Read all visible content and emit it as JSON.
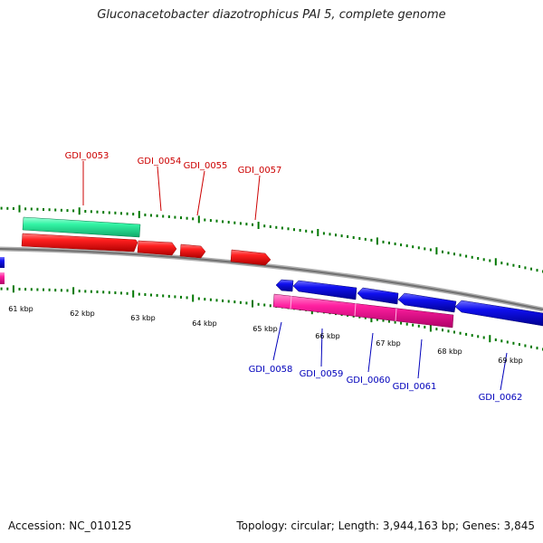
{
  "title": "Gluconacetobacter diazotrophicus PAI 5, complete genome",
  "footer": {
    "accession": "Accession: NC_010125",
    "stats": "Topology: circular; Length: 3,944,163 bp; Genes: 3,845"
  },
  "colors": {
    "forward_gene": "#ff0000",
    "forward_rna": "#33ffaa",
    "reverse_gene": "#0000ee",
    "reverse_rna": "#ff1aa3",
    "label_forward": "#cc0000",
    "label_reverse": "#0000bb",
    "ticks": "#007700",
    "backbone": "#808080"
  },
  "scale_labels": [
    "61 kbp",
    "62 kbp",
    "63 kbp",
    "64 kbp",
    "65 kbp",
    "66 kbp",
    "67 kbp",
    "68 kbp",
    "69 kbp"
  ],
  "forward_labels": [
    "GDI_0053",
    "GDI_0054",
    "GDI_0055",
    "GDI_0057"
  ],
  "reverse_labels": [
    "GDI_0058",
    "GDI_0059",
    "GDI_0060",
    "GDI_0061",
    "GDI_0062"
  ]
}
